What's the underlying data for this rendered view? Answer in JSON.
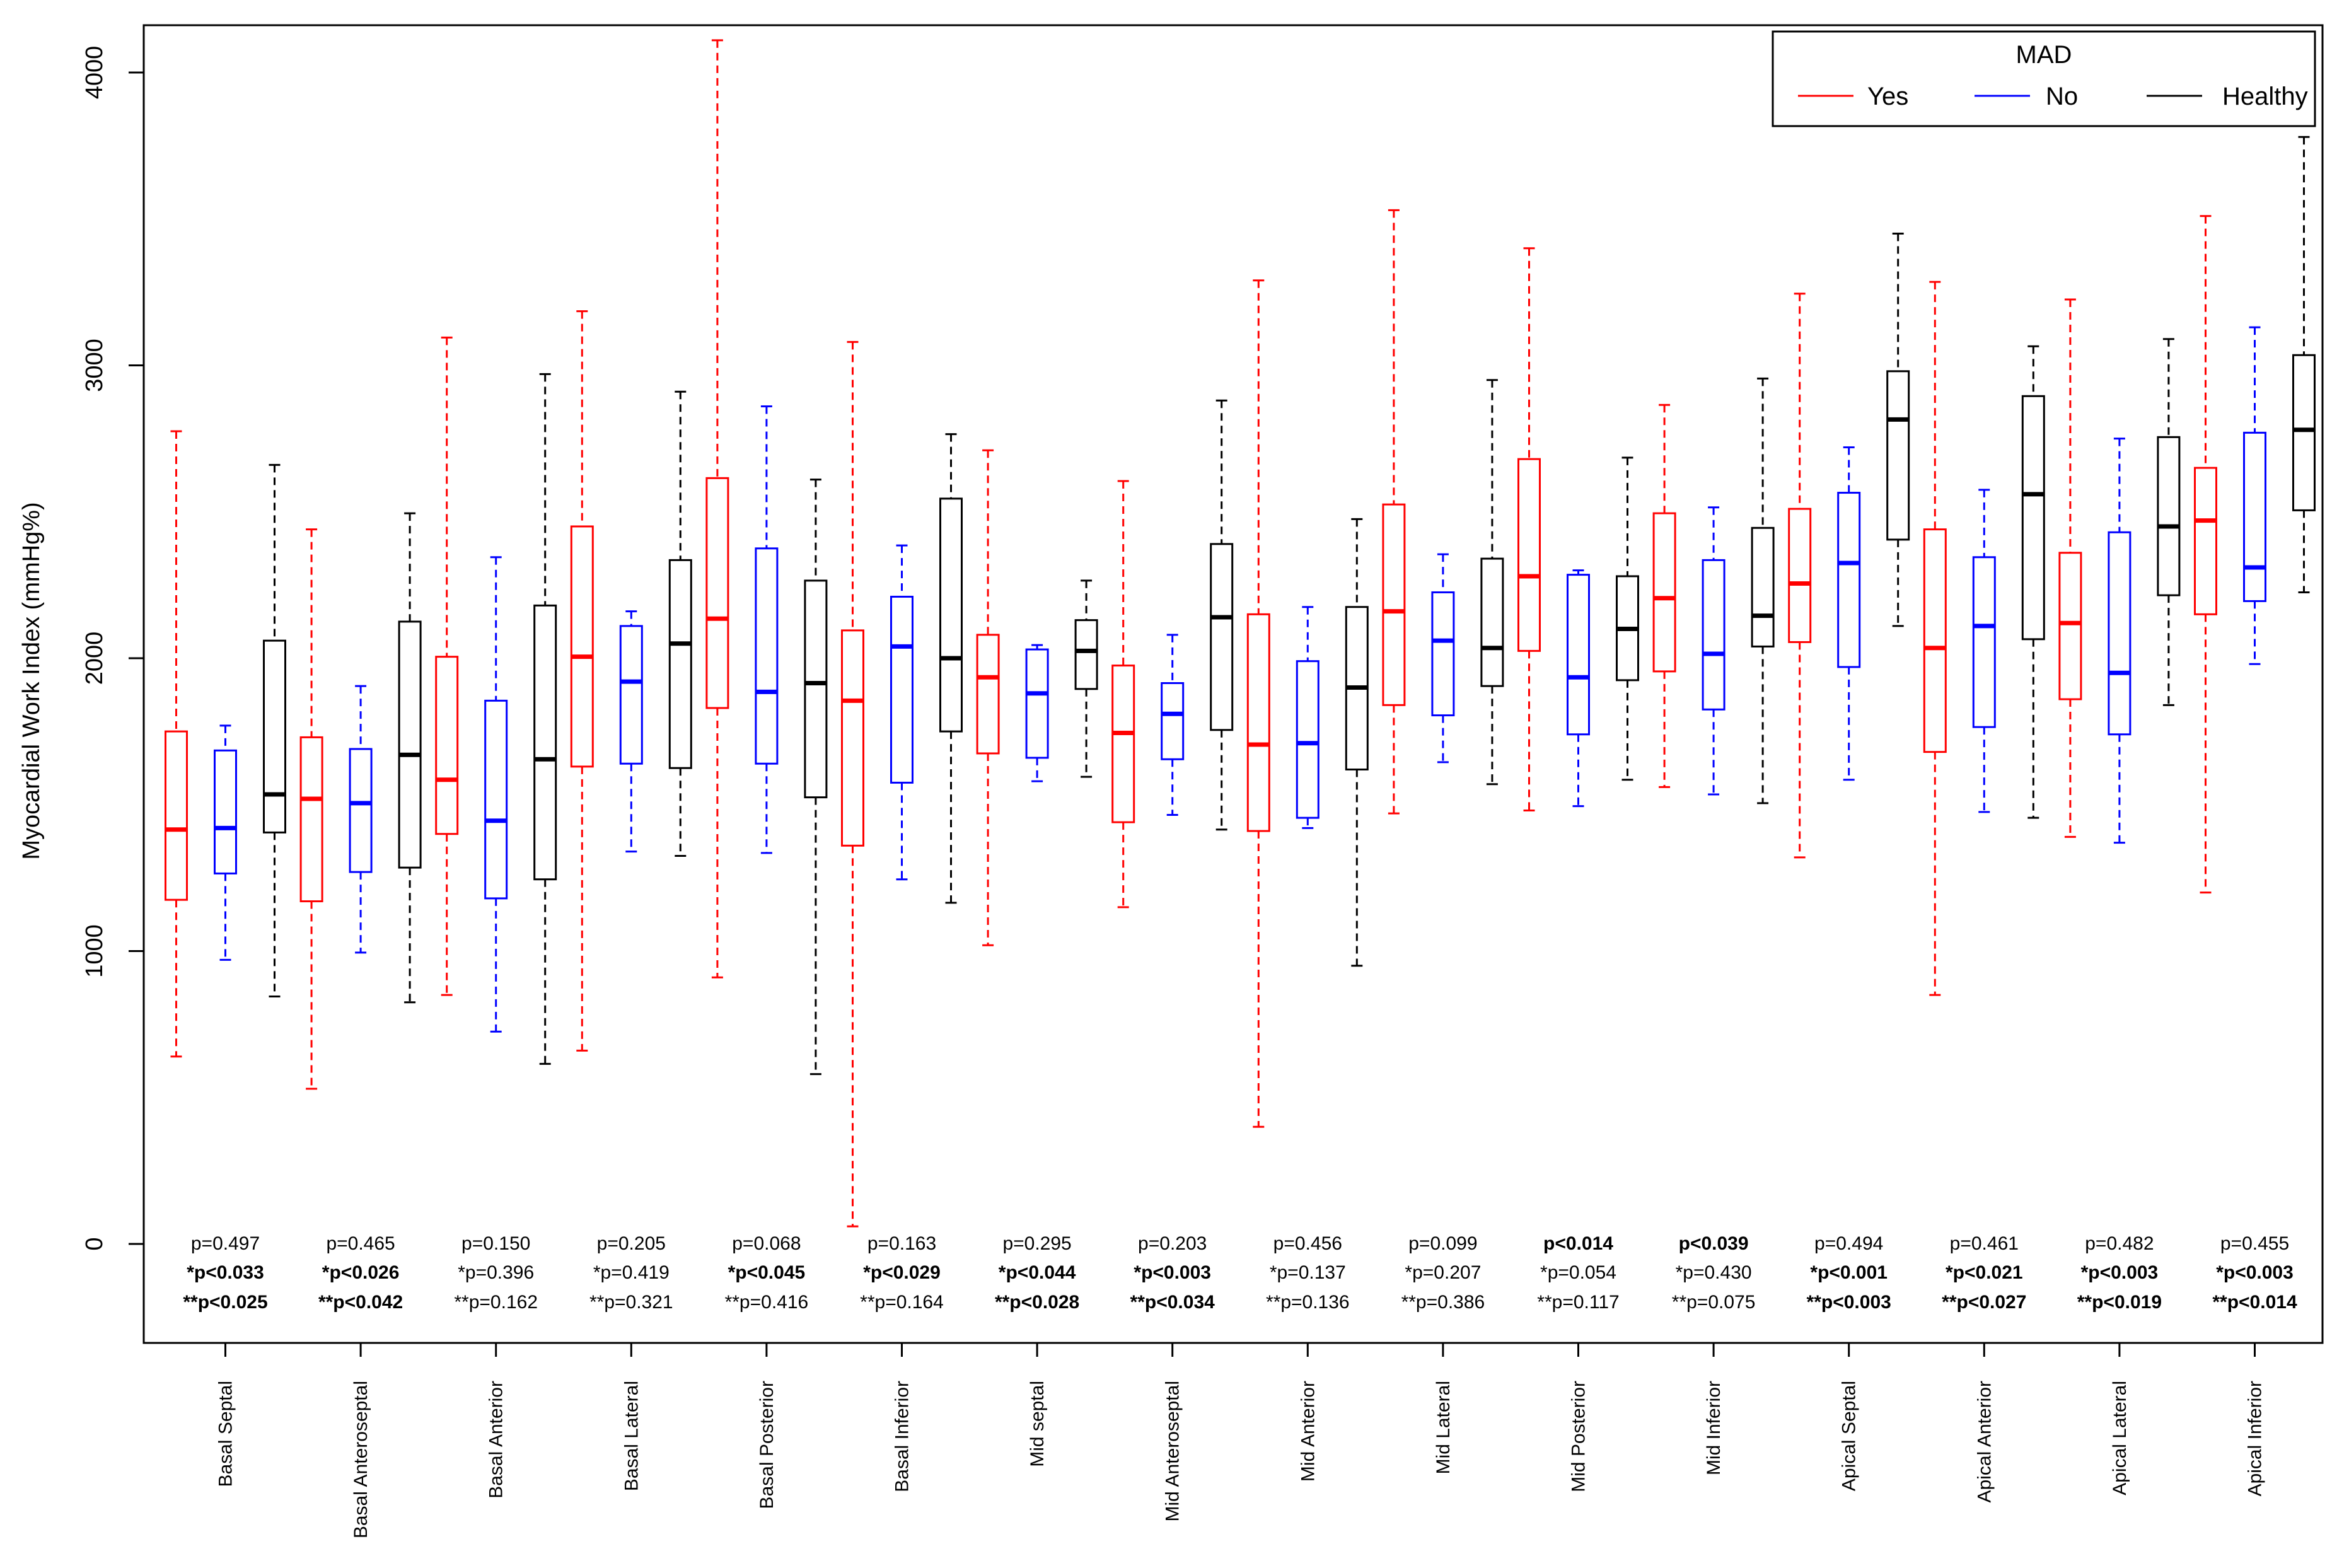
{
  "chart_data": {
    "type": "boxplot",
    "title": "",
    "xlabel": "",
    "ylabel": "Myocardial Work Index (mmHg%)",
    "ylim": [
      -350,
      4180
    ],
    "yticks": [
      0,
      1000,
      2000,
      3000,
      4000
    ],
    "grid": false,
    "legend": {
      "title": "MAD",
      "position": "top-right",
      "entries": [
        {
          "key": "yes",
          "label": "Yes",
          "color": "#ff0000"
        },
        {
          "key": "no",
          "label": "No",
          "color": "#0000ff"
        },
        {
          "key": "healthy",
          "label": "Healthy",
          "color": "#000000"
        }
      ]
    },
    "categories": [
      "Basal Septal",
      "Basal Anteroseptal",
      "Basal Anterior",
      "Basal Lateral",
      "Basal Posterior",
      "Basal Inferior",
      "Mid septal",
      "Mid Anteroseptal",
      "Mid Anterior",
      "Mid Lateral",
      "Mid Posterior",
      "Mid Inferior",
      "Apical Septal",
      "Apical Anterior",
      "Apical Lateral",
      "Apical Inferior"
    ],
    "series": [
      {
        "name": "Yes",
        "color": "#ff0000",
        "boxes": [
          {
            "min": 640,
            "q1": 1175,
            "median": 1415,
            "q3": 1750,
            "max": 2775
          },
          {
            "min": 530,
            "q1": 1170,
            "median": 1520,
            "q3": 1730,
            "max": 2440
          },
          {
            "min": 850,
            "q1": 1400,
            "median": 1585,
            "q3": 2005,
            "max": 3095
          },
          {
            "min": 660,
            "q1": 1630,
            "median": 2005,
            "q3": 2450,
            "max": 3185
          },
          {
            "min": 910,
            "q1": 1830,
            "median": 2135,
            "q3": 2615,
            "max": 4110
          },
          {
            "min": 60,
            "q1": 1360,
            "median": 1855,
            "q3": 2095,
            "max": 3080
          },
          {
            "min": 1020,
            "q1": 1675,
            "median": 1935,
            "q3": 2080,
            "max": 2710
          },
          {
            "min": 1150,
            "q1": 1440,
            "median": 1745,
            "q3": 1975,
            "max": 2605
          },
          {
            "min": 400,
            "q1": 1410,
            "median": 1705,
            "q3": 2150,
            "max": 3290
          },
          {
            "min": 1470,
            "q1": 1840,
            "median": 2160,
            "q3": 2525,
            "max": 3530
          },
          {
            "min": 1480,
            "q1": 2025,
            "median": 2280,
            "q3": 2680,
            "max": 3400
          },
          {
            "min": 1560,
            "q1": 1955,
            "median": 2205,
            "q3": 2495,
            "max": 2865
          },
          {
            "min": 1320,
            "q1": 2055,
            "median": 2255,
            "q3": 2510,
            "max": 3245
          },
          {
            "min": 850,
            "q1": 1680,
            "median": 2035,
            "q3": 2440,
            "max": 3285
          },
          {
            "min": 1390,
            "q1": 1860,
            "median": 2120,
            "q3": 2360,
            "max": 3225
          },
          {
            "min": 1200,
            "q1": 2150,
            "median": 2470,
            "q3": 2650,
            "max": 3510
          }
        ]
      },
      {
        "name": "No",
        "color": "#0000ff",
        "boxes": [
          {
            "min": 970,
            "q1": 1265,
            "median": 1420,
            "q3": 1685,
            "max": 1770
          },
          {
            "min": 995,
            "q1": 1270,
            "median": 1505,
            "q3": 1690,
            "max": 1905
          },
          {
            "min": 725,
            "q1": 1180,
            "median": 1445,
            "q3": 1855,
            "max": 2345
          },
          {
            "min": 1340,
            "q1": 1640,
            "median": 1920,
            "q3": 2110,
            "max": 2160
          },
          {
            "min": 1335,
            "q1": 1640,
            "median": 1885,
            "q3": 2375,
            "max": 2860
          },
          {
            "min": 1245,
            "q1": 1575,
            "median": 2040,
            "q3": 2210,
            "max": 2385
          },
          {
            "min": 1580,
            "q1": 1660,
            "median": 1880,
            "q3": 2030,
            "max": 2045
          },
          {
            "min": 1465,
            "q1": 1655,
            "median": 1810,
            "q3": 1915,
            "max": 2080
          },
          {
            "min": 1420,
            "q1": 1455,
            "median": 1710,
            "q3": 1990,
            "max": 2175
          },
          {
            "min": 1645,
            "q1": 1805,
            "median": 2060,
            "q3": 2225,
            "max": 2355
          },
          {
            "min": 1495,
            "q1": 1740,
            "median": 1935,
            "q3": 2285,
            "max": 2300
          },
          {
            "min": 1535,
            "q1": 1825,
            "median": 2015,
            "q3": 2335,
            "max": 2515
          },
          {
            "min": 1585,
            "q1": 1970,
            "median": 2325,
            "q3": 2565,
            "max": 2720
          },
          {
            "min": 1475,
            "q1": 1765,
            "median": 2110,
            "q3": 2345,
            "max": 2575
          },
          {
            "min": 1370,
            "q1": 1740,
            "median": 1950,
            "q3": 2430,
            "max": 2750
          },
          {
            "min": 1980,
            "q1": 2195,
            "median": 2310,
            "q3": 2770,
            "max": 3130
          }
        ]
      },
      {
        "name": "Healthy",
        "color": "#000000",
        "boxes": [
          {
            "min": 845,
            "q1": 1405,
            "median": 1535,
            "q3": 2060,
            "max": 2660
          },
          {
            "min": 825,
            "q1": 1285,
            "median": 1670,
            "q3": 2125,
            "max": 2495
          },
          {
            "min": 615,
            "q1": 1245,
            "median": 1655,
            "q3": 2180,
            "max": 2970
          },
          {
            "min": 1325,
            "q1": 1625,
            "median": 2050,
            "q3": 2335,
            "max": 2910
          },
          {
            "min": 580,
            "q1": 1525,
            "median": 1915,
            "q3": 2265,
            "max": 2610
          },
          {
            "min": 1165,
            "q1": 1750,
            "median": 2000,
            "q3": 2545,
            "max": 2765
          },
          {
            "min": 1595,
            "q1": 1895,
            "median": 2025,
            "q3": 2130,
            "max": 2265
          },
          {
            "min": 1415,
            "q1": 1755,
            "median": 2140,
            "q3": 2390,
            "max": 2880
          },
          {
            "min": 950,
            "q1": 1620,
            "median": 1900,
            "q3": 2175,
            "max": 2475
          },
          {
            "min": 1570,
            "q1": 1905,
            "median": 2035,
            "q3": 2340,
            "max": 2950
          },
          {
            "min": 1585,
            "q1": 1925,
            "median": 2100,
            "q3": 2280,
            "max": 2685
          },
          {
            "min": 1505,
            "q1": 2040,
            "median": 2145,
            "q3": 2445,
            "max": 2955
          },
          {
            "min": 2110,
            "q1": 2405,
            "median": 2815,
            "q3": 2980,
            "max": 3450
          },
          {
            "min": 1455,
            "q1": 2065,
            "median": 2560,
            "q3": 2895,
            "max": 3065
          },
          {
            "min": 1840,
            "q1": 2215,
            "median": 2450,
            "q3": 2755,
            "max": 3090
          },
          {
            "min": 2225,
            "q1": 2505,
            "median": 2780,
            "q3": 3035,
            "max": 3780
          }
        ]
      }
    ],
    "pvalues": [
      [
        {
          "text": "p=0.497",
          "bold": false
        },
        {
          "text": "*p<0.033",
          "bold": true
        },
        {
          "text": "**p<0.025",
          "bold": true
        }
      ],
      [
        {
          "text": "p=0.465",
          "bold": false
        },
        {
          "text": "*p<0.026",
          "bold": true
        },
        {
          "text": "**p<0.042",
          "bold": true
        }
      ],
      [
        {
          "text": "p=0.150",
          "bold": false
        },
        {
          "text": "*p=0.396",
          "bold": false
        },
        {
          "text": "**p=0.162",
          "bold": false
        }
      ],
      [
        {
          "text": "p=0.205",
          "bold": false
        },
        {
          "text": "*p=0.419",
          "bold": false
        },
        {
          "text": "**p=0.321",
          "bold": false
        }
      ],
      [
        {
          "text": "p=0.068",
          "bold": false
        },
        {
          "text": "*p<0.045",
          "bold": true
        },
        {
          "text": "**p=0.416",
          "bold": false
        }
      ],
      [
        {
          "text": "p=0.163",
          "bold": false
        },
        {
          "text": "*p<0.029",
          "bold": true
        },
        {
          "text": "**p=0.164",
          "bold": false
        }
      ],
      [
        {
          "text": "p=0.295",
          "bold": false
        },
        {
          "text": "*p<0.044",
          "bold": true
        },
        {
          "text": "**p<0.028",
          "bold": true
        }
      ],
      [
        {
          "text": "p=0.203",
          "bold": false
        },
        {
          "text": "*p<0.003",
          "bold": true
        },
        {
          "text": "**p<0.034",
          "bold": true
        }
      ],
      [
        {
          "text": "p=0.456",
          "bold": false
        },
        {
          "text": "*p=0.137",
          "bold": false
        },
        {
          "text": "**p=0.136",
          "bold": false
        }
      ],
      [
        {
          "text": "p=0.099",
          "bold": false
        },
        {
          "text": "*p=0.207",
          "bold": false
        },
        {
          "text": "**p=0.386",
          "bold": false
        }
      ],
      [
        {
          "text": "p<0.014",
          "bold": true
        },
        {
          "text": "*p=0.054",
          "bold": false
        },
        {
          "text": "**p=0.117",
          "bold": false
        }
      ],
      [
        {
          "text": "p<0.039",
          "bold": true
        },
        {
          "text": "*p=0.430",
          "bold": false
        },
        {
          "text": "**p=0.075",
          "bold": false
        }
      ],
      [
        {
          "text": "p=0.494",
          "bold": false
        },
        {
          "text": "*p<0.001",
          "bold": true
        },
        {
          "text": "**p<0.003",
          "bold": true
        }
      ],
      [
        {
          "text": "p=0.461",
          "bold": false
        },
        {
          "text": "*p<0.021",
          "bold": true
        },
        {
          "text": "**p<0.027",
          "bold": true
        }
      ],
      [
        {
          "text": "p=0.482",
          "bold": false
        },
        {
          "text": "*p<0.003",
          "bold": true
        },
        {
          "text": "**p<0.019",
          "bold": true
        }
      ],
      [
        {
          "text": "p=0.455",
          "bold": false
        },
        {
          "text": "*p<0.003",
          "bold": true
        },
        {
          "text": "**p<0.014",
          "bold": true
        }
      ]
    ]
  }
}
